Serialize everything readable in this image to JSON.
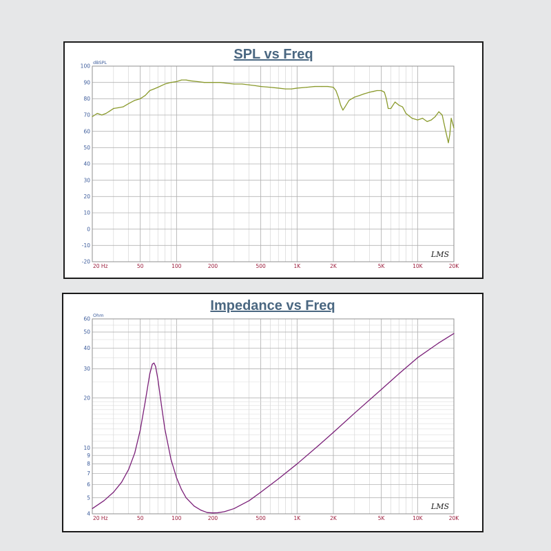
{
  "chart_data": [
    {
      "type": "line",
      "title": "SPL vs Freq",
      "ylabel": "dBSPL",
      "xlabel": "",
      "x_scale": "log",
      "xlim": [
        20,
        20000
      ],
      "ylim": [
        -20,
        100
      ],
      "grid": true,
      "line_color": "#8a9a2c",
      "x_ticks": [
        {
          "value": 20,
          "label": "20 Hz"
        },
        {
          "value": 50,
          "label": "50"
        },
        {
          "value": 100,
          "label": "100"
        },
        {
          "value": 200,
          "label": "200"
        },
        {
          "value": 500,
          "label": "500"
        },
        {
          "value": 1000,
          "label": "1K"
        },
        {
          "value": 2000,
          "label": "2K"
        },
        {
          "value": 5000,
          "label": "5K"
        },
        {
          "value": 10000,
          "label": "10K"
        },
        {
          "value": 20000,
          "label": "20K"
        }
      ],
      "y_ticks": [
        100,
        90,
        80,
        70,
        60,
        50,
        40,
        30,
        20,
        10,
        0,
        -10,
        -20
      ],
      "brand": "LMS",
      "series": [
        {
          "x": [
            20,
            22,
            24,
            26,
            28,
            30,
            33,
            36,
            40,
            45,
            50,
            55,
            60,
            65,
            70,
            80,
            90,
            100,
            110,
            120,
            130,
            150,
            170,
            200,
            230,
            260,
            300,
            350,
            400,
            450,
            500,
            600,
            700,
            800,
            900,
            1000,
            1200,
            1400,
            1600,
            1800,
            2000,
            2100,
            2200,
            2300,
            2400,
            2500,
            2700,
            3000,
            3300,
            3600,
            4000,
            4300,
            4600,
            5000,
            5300,
            5500,
            5700,
            6000,
            6500,
            7000,
            7500,
            8000,
            9000,
            10000,
            11000,
            12000,
            13000,
            14000,
            15000,
            16000,
            17000,
            18000,
            18500,
            19000,
            20000
          ],
          "values": [
            69,
            71,
            70,
            71,
            72.5,
            74,
            74.5,
            75,
            77,
            79,
            80,
            82,
            85,
            86,
            87,
            89,
            90,
            90.5,
            91.5,
            91.5,
            91,
            90.5,
            90,
            90,
            90,
            89.5,
            89,
            89,
            88.5,
            88,
            87.5,
            87,
            86.5,
            86,
            86,
            86.5,
            87,
            87.5,
            87.5,
            87.5,
            87,
            85,
            81,
            76,
            73,
            75,
            79,
            81,
            82,
            83,
            84,
            84.5,
            85,
            85,
            84,
            80,
            74,
            74,
            78,
            76,
            75,
            71,
            68,
            67,
            68,
            66,
            67,
            69,
            72,
            70,
            61,
            53,
            58,
            68,
            62
          ]
        }
      ]
    },
    {
      "type": "line",
      "title": "Impedance vs Freq",
      "ylabel": "Ohm",
      "xlabel": "",
      "x_scale": "log",
      "y_scale": "log",
      "xlim": [
        20,
        20000
      ],
      "ylim": [
        4,
        60
      ],
      "grid": true,
      "line_color": "#7a1f78",
      "x_ticks": [
        {
          "value": 20,
          "label": "20 Hz"
        },
        {
          "value": 50,
          "label": "50"
        },
        {
          "value": 100,
          "label": "100"
        },
        {
          "value": 200,
          "label": "200"
        },
        {
          "value": 500,
          "label": "500"
        },
        {
          "value": 1000,
          "label": "1K"
        },
        {
          "value": 2000,
          "label": "2K"
        },
        {
          "value": 5000,
          "label": "5K"
        },
        {
          "value": 10000,
          "label": "10K"
        },
        {
          "value": 20000,
          "label": "20K"
        }
      ],
      "y_ticks": [
        60,
        50,
        40,
        30,
        20,
        10,
        9,
        8,
        7,
        6,
        5,
        4
      ],
      "brand": "LMS",
      "series": [
        {
          "x": [
            20,
            25,
            30,
            35,
            40,
            45,
            50,
            55,
            60,
            63,
            65,
            67,
            70,
            75,
            80,
            90,
            100,
            110,
            120,
            140,
            160,
            180,
            200,
            220,
            250,
            300,
            400,
            500,
            700,
            1000,
            1500,
            2000,
            3000,
            5000,
            7000,
            10000,
            15000,
            20000
          ],
          "values": [
            4.3,
            4.8,
            5.4,
            6.2,
            7.4,
            9.3,
            12.8,
            19,
            28,
            32,
            32.5,
            31,
            26,
            18,
            13,
            8.5,
            6.6,
            5.6,
            5.0,
            4.45,
            4.2,
            4.07,
            4.05,
            4.06,
            4.12,
            4.3,
            4.8,
            5.4,
            6.5,
            8.0,
            10.3,
            12.4,
            16.2,
            22.5,
            28,
            35,
            43,
            49
          ]
        }
      ]
    }
  ]
}
